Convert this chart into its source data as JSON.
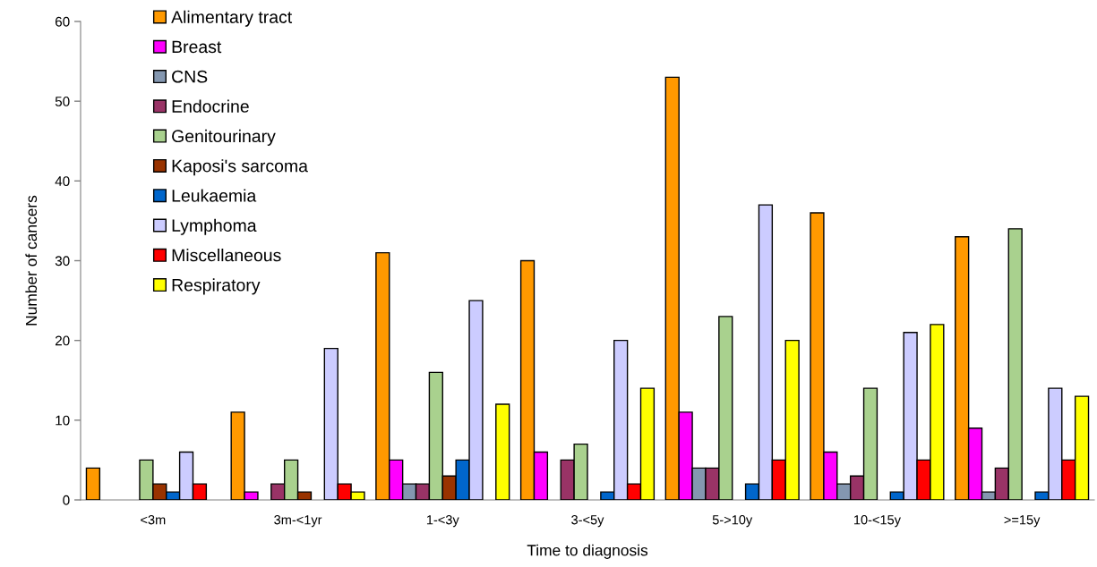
{
  "chart_data": {
    "type": "bar",
    "xlabel": "Time to diagnosis",
    "ylabel": "Number of cancers",
    "categories": [
      "<3m",
      "3m-<1yr",
      "1-<3y",
      "3-<5y",
      "5->10y",
      "10-<15y",
      ">=15y"
    ],
    "series": [
      {
        "name": "Alimentary tract",
        "color": "#ff9900",
        "values": [
          4,
          11,
          31,
          30,
          53,
          36,
          33
        ]
      },
      {
        "name": "Breast",
        "color": "#ff00ff",
        "values": [
          0,
          1,
          5,
          6,
          11,
          6,
          9
        ]
      },
      {
        "name": "CNS",
        "color": "#8497b0",
        "values": [
          0,
          0,
          2,
          0,
          4,
          2,
          1
        ]
      },
      {
        "name": "Endocrine",
        "color": "#993366",
        "values": [
          0,
          2,
          2,
          5,
          4,
          3,
          4
        ]
      },
      {
        "name": "Genitourinary",
        "color": "#a9d18e",
        "values": [
          5,
          5,
          16,
          7,
          23,
          14,
          34
        ]
      },
      {
        "name": "Kaposi's sarcoma",
        "color": "#993300",
        "values": [
          2,
          1,
          3,
          0,
          0,
          0,
          0
        ]
      },
      {
        "name": "Leukaemia",
        "color": "#0066cc",
        "values": [
          1,
          0,
          5,
          1,
          2,
          1,
          1
        ]
      },
      {
        "name": "Lymphoma",
        "color": "#ccccff",
        "values": [
          6,
          19,
          25,
          20,
          37,
          21,
          14
        ]
      },
      {
        "name": "Miscellaneous",
        "color": "#ff0000",
        "values": [
          2,
          2,
          0,
          2,
          5,
          5,
          5
        ]
      },
      {
        "name": "Respiratory",
        "color": "#ffff00",
        "values": [
          0,
          1,
          12,
          14,
          20,
          22,
          13
        ]
      }
    ],
    "ylim": [
      0,
      60
    ],
    "yticks": [
      0,
      10,
      20,
      30,
      40,
      50,
      60
    ],
    "grid": false,
    "legend": "top left"
  }
}
